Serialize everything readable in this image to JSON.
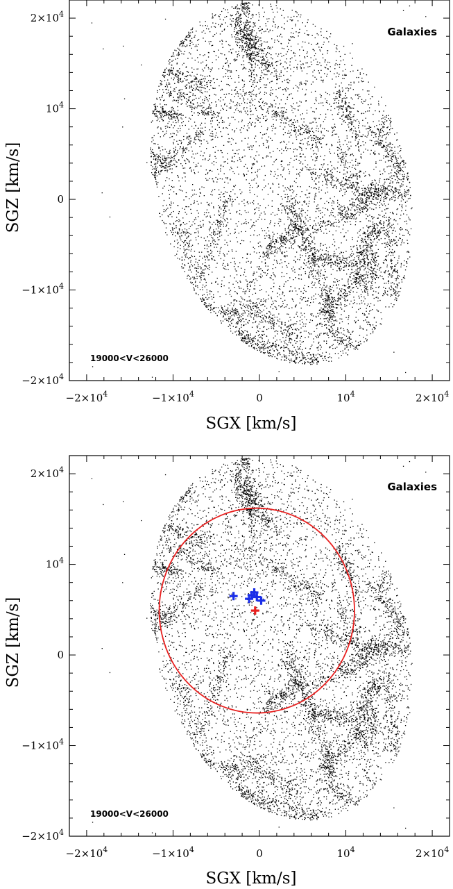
{
  "colors": {
    "galaxy_points": "#000000",
    "circle": "#e8201f",
    "blue_markers": "#1a2ee8",
    "red_marker": "#e8201f"
  },
  "chart_data": [
    {
      "type": "scatter",
      "panel": "top",
      "xlabel": "SGX [km/s]",
      "ylabel": "SGZ [km/s]",
      "xlim": [
        -22000,
        22000
      ],
      "ylim": [
        -20000,
        22000
      ],
      "x_ticks": [
        {
          "value": -20000,
          "mantissa": "−2×10",
          "exp": "4"
        },
        {
          "value": -10000,
          "mantissa": "−1×10",
          "exp": "4"
        },
        {
          "value": 0,
          "mantissa": "0",
          "exp": ""
        },
        {
          "value": 10000,
          "mantissa": "10",
          "exp": "4"
        },
        {
          "value": 20000,
          "mantissa": "2×10",
          "exp": "4"
        }
      ],
      "y_ticks": [
        {
          "value": -20000,
          "mantissa": "−2×10",
          "exp": "4"
        },
        {
          "value": -10000,
          "mantissa": "−1×10",
          "exp": "4"
        },
        {
          "value": 0,
          "mantissa": "0",
          "exp": ""
        },
        {
          "value": 10000,
          "mantissa": "10",
          "exp": "4"
        },
        {
          "value": 20000,
          "mantissa": "2×10",
          "exp": "4"
        }
      ],
      "legend": "Galaxies",
      "legend_placement": "top-right",
      "annotation": "19000<V<26000",
      "annotation_placement": "bottom-left",
      "series": [
        {
          "name": "Galaxies",
          "marker": "dot",
          "points_shown": 9000
        }
      ],
      "circle": null,
      "markers": []
    },
    {
      "type": "scatter",
      "panel": "bottom",
      "xlabel": "SGX [km/s]",
      "ylabel": "SGZ [km/s]",
      "xlim": [
        -22000,
        22000
      ],
      "ylim": [
        -20000,
        22000
      ],
      "x_ticks": [
        {
          "value": -20000,
          "mantissa": "−2×10",
          "exp": "4"
        },
        {
          "value": -10000,
          "mantissa": "−1×10",
          "exp": "4"
        },
        {
          "value": 0,
          "mantissa": "0",
          "exp": ""
        },
        {
          "value": 10000,
          "mantissa": "10",
          "exp": "4"
        },
        {
          "value": 20000,
          "mantissa": "2×10",
          "exp": "4"
        }
      ],
      "y_ticks": [
        {
          "value": -20000,
          "mantissa": "−2×10",
          "exp": "4"
        },
        {
          "value": -10000,
          "mantissa": "−1×10",
          "exp": "4"
        },
        {
          "value": 0,
          "mantissa": "0",
          "exp": ""
        },
        {
          "value": 10000,
          "mantissa": "10",
          "exp": "4"
        },
        {
          "value": 20000,
          "mantissa": "2×10",
          "exp": "4"
        }
      ],
      "legend": "Galaxies",
      "legend_placement": "top-right",
      "annotation": "19000<V<26000",
      "annotation_placement": "bottom-left",
      "series": [
        {
          "name": "Galaxies",
          "marker": "dot",
          "points_shown": 9000
        }
      ],
      "circle": {
        "center": [
          -300,
          4900
        ],
        "radius": 11300
      },
      "markers": [
        {
          "x": -3000,
          "y": 6500,
          "color": "blue",
          "shape": "plus"
        },
        {
          "x": -1200,
          "y": 6200,
          "color": "blue",
          "shape": "plus"
        },
        {
          "x": -900,
          "y": 6600,
          "color": "blue",
          "shape": "plus"
        },
        {
          "x": -600,
          "y": 6900,
          "color": "blue",
          "shape": "plus"
        },
        {
          "x": -300,
          "y": 6400,
          "color": "blue",
          "shape": "plus"
        },
        {
          "x": 200,
          "y": 6000,
          "color": "blue",
          "shape": "plus"
        },
        {
          "x": -500,
          "y": 4900,
          "color": "red",
          "shape": "plus"
        }
      ]
    }
  ]
}
